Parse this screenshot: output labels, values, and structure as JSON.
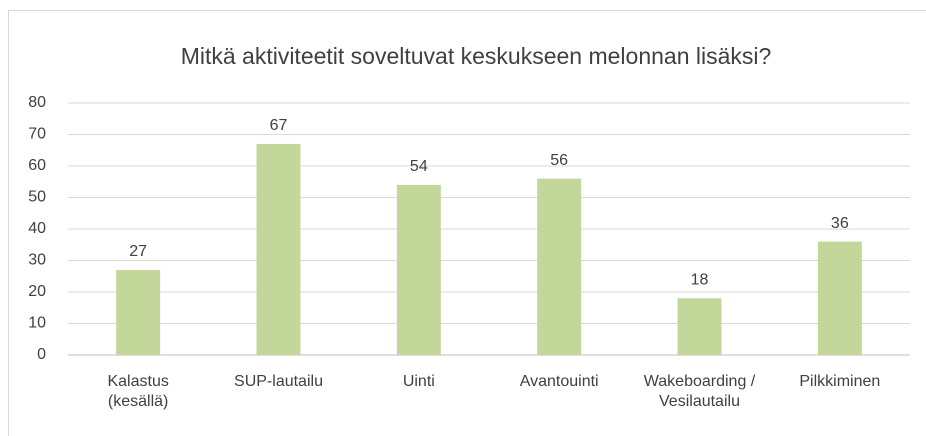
{
  "chart_data": {
    "type": "bar",
    "title": "Mitkä aktiviteetit soveltuvat keskukseen melonnan lisäksi?",
    "categories": [
      "Kalastus (kesällä)",
      "SUP-lautailu",
      "Uinti",
      "Avantouinti",
      "Wakeboarding / Vesilautailu",
      "Pilkkiminen"
    ],
    "values": [
      27,
      67,
      54,
      56,
      18,
      36
    ],
    "color": "#c4d79b",
    "ylim": [
      0,
      80
    ],
    "yticks": [
      0,
      10,
      20,
      30,
      40,
      50,
      60,
      70,
      80
    ],
    "grid": true
  }
}
